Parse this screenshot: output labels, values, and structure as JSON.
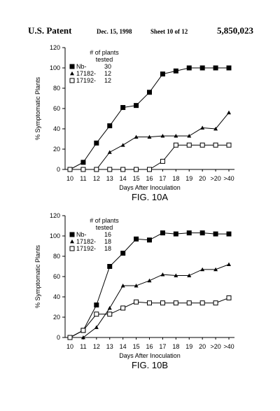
{
  "header": {
    "left": "U.S. Patent",
    "date": "Dec. 15, 1998",
    "sheet": "Sheet 10 of 12",
    "number": "5,850,023"
  },
  "chart_data": [
    {
      "type": "line",
      "title": "FIG. 10A",
      "x_label": "Days After Inoculation",
      "y_label": "% Symptomatic Plants",
      "legend_title": "# of plants\ntested",
      "categories": [
        "10",
        "11",
        "12",
        "13",
        "14",
        "15",
        "16",
        "17",
        "18",
        "19",
        "20",
        ">20",
        ">40"
      ],
      "ylim": [
        0,
        120
      ],
      "yticks": [
        0,
        20,
        40,
        60,
        80,
        100,
        120
      ],
      "legend": "upper left",
      "series": [
        {
          "name": "Nb-",
          "plants": 30,
          "marker": "filled-square",
          "color": "#000000",
          "values": [
            0,
            7,
            26,
            43,
            61,
            63,
            76,
            94,
            97,
            100,
            100,
            100,
            100
          ]
        },
        {
          "name": "17182-",
          "plants": 12,
          "marker": "triangle",
          "color": "#000000",
          "values": [
            0,
            0,
            0,
            17,
            24,
            32,
            32,
            33,
            33,
            33,
            41,
            40,
            56
          ]
        },
        {
          "name": "17192-",
          "plants": 12,
          "marker": "open-square",
          "color": "#000000",
          "values": [
            0,
            0,
            0,
            0,
            0,
            0,
            0,
            8,
            24,
            24,
            24,
            24,
            24
          ]
        }
      ]
    },
    {
      "type": "line",
      "title": "FIG. 10B",
      "x_label": "Days After Inoculation",
      "y_label": "% Symptomatic Plants",
      "legend_title": "# of plants\ntested",
      "categories": [
        "10",
        "11",
        "12",
        "13",
        "14",
        "15",
        "16",
        "17",
        "18",
        "19",
        "20",
        ">20",
        ">40"
      ],
      "ylim": [
        0,
        120
      ],
      "yticks": [
        0,
        20,
        40,
        60,
        80,
        100,
        120
      ],
      "legend": "upper left",
      "series": [
        {
          "name": "Nb-",
          "plants": 16,
          "marker": "filled-square",
          "color": "#000000",
          "values": [
            0,
            7,
            32,
            70,
            83,
            97,
            96,
            103,
            102,
            103,
            103,
            102,
            102
          ]
        },
        {
          "name": "17182-",
          "plants": 18,
          "marker": "triangle",
          "color": "#000000",
          "values": [
            0,
            0,
            10,
            29,
            51,
            51,
            56,
            62,
            61,
            61,
            67,
            67,
            72
          ]
        },
        {
          "name": "17192-",
          "plants": 18,
          "marker": "open-square",
          "color": "#000000",
          "values": [
            0,
            7,
            23,
            23,
            29,
            35,
            34,
            34,
            34,
            34,
            34,
            34,
            39
          ]
        }
      ]
    }
  ]
}
